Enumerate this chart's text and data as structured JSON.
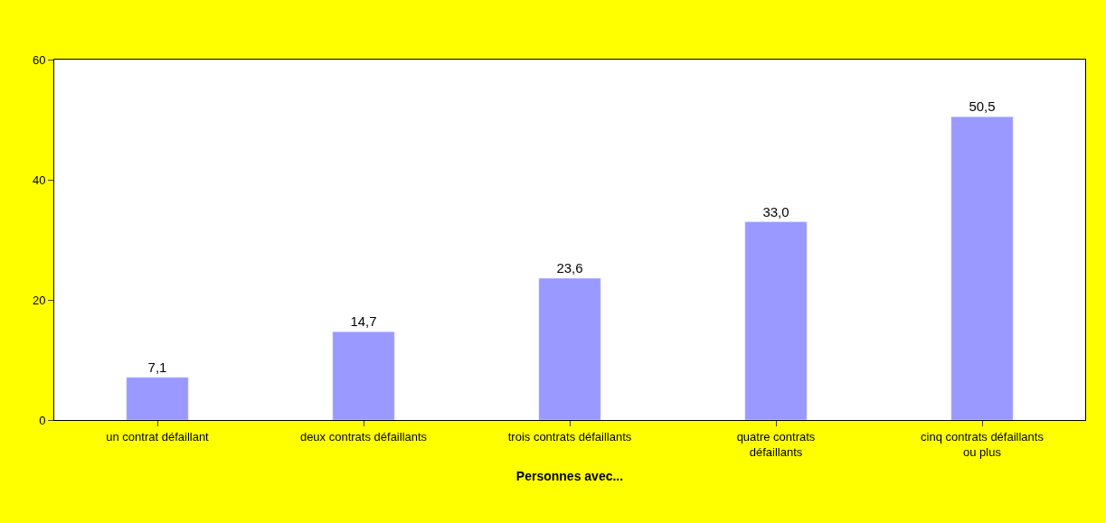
{
  "chart_data": {
    "type": "bar",
    "categories": [
      "un contrat défaillant",
      "deux contrats défaillants",
      "trois contrats défaillants",
      "quatre contrats défaillants",
      "cinq contrats défaillants ou plus"
    ],
    "values": [
      7.1,
      14.7,
      23.6,
      33.0,
      50.5
    ],
    "value_labels": [
      "7,1",
      "14,7",
      "23,6",
      "33,0",
      "50,5"
    ],
    "color": "#9999ff",
    "xlabel": "Personnes avec...",
    "ylim": [
      0,
      60
    ],
    "yticks": [
      0,
      20,
      40,
      60
    ],
    "grid": false,
    "legend": false
  }
}
